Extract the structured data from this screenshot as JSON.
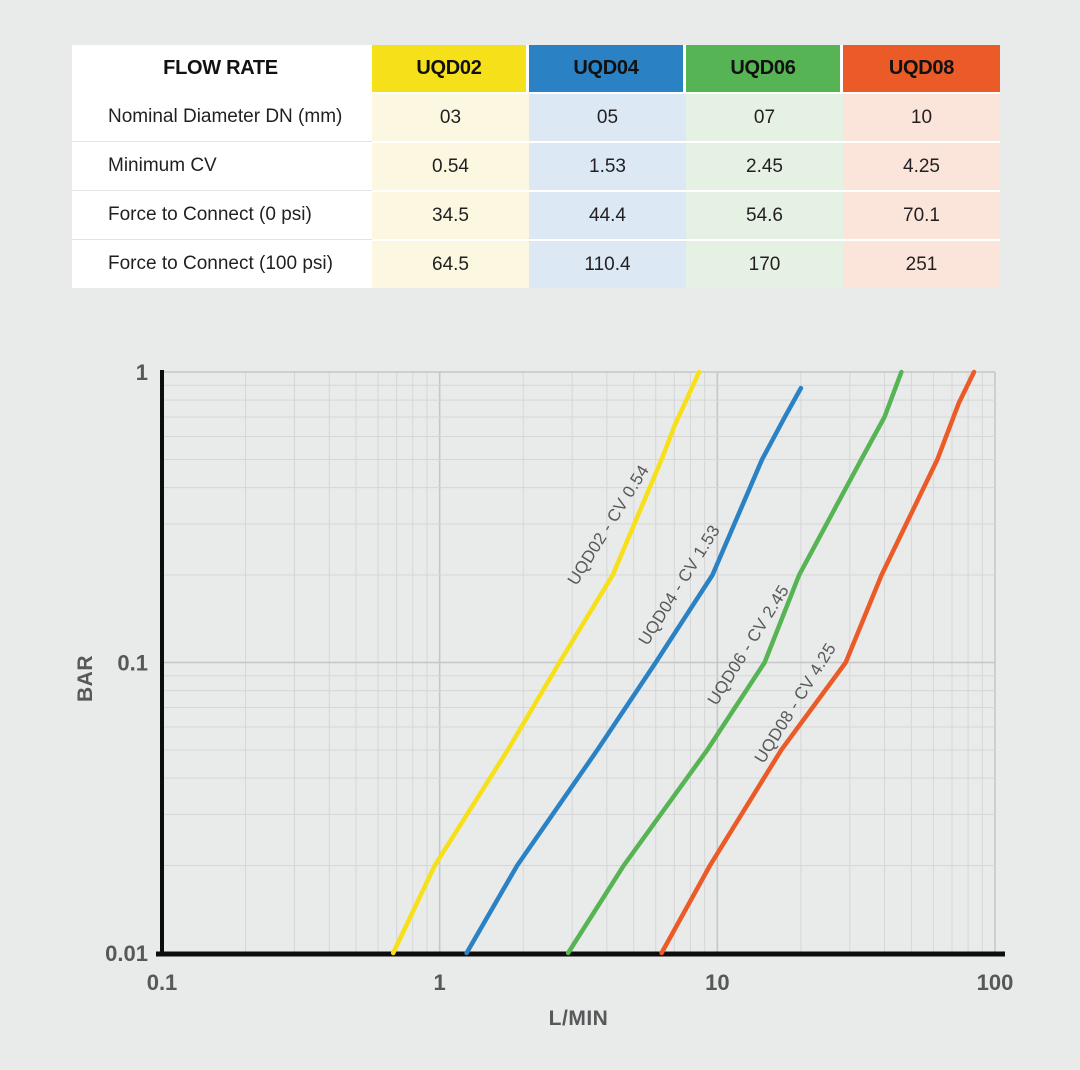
{
  "table": {
    "corner_label": "FLOW RATE",
    "columns": [
      {
        "label": "UQD02",
        "header_color": "#f6e01a",
        "tint_color": "#fcf7e0"
      },
      {
        "label": "UQD04",
        "header_color": "#2a82c5",
        "tint_color": "#dce9f5"
      },
      {
        "label": "UQD06",
        "header_color": "#57b454",
        "tint_color": "#e5f1e3"
      },
      {
        "label": "UQD08",
        "header_color": "#ea5b28",
        "tint_color": "#fbe5db"
      }
    ],
    "rows": [
      {
        "label": "Nominal Diameter DN (mm)",
        "values": [
          "03",
          "05",
          "07",
          "10"
        ]
      },
      {
        "label": "Minimum CV",
        "values": [
          "0.54",
          "1.53",
          "2.45",
          "4.25"
        ]
      },
      {
        "label": "Force to Connect (0 psi)",
        "values": [
          "34.5",
          "44.4",
          "54.6",
          "70.1"
        ]
      },
      {
        "label": "Force to Connect (100 psi)",
        "values": [
          "64.5",
          "110.4",
          "170",
          "251"
        ]
      }
    ]
  },
  "chart_data": {
    "type": "line",
    "xlabel": "L/MIN",
    "ylabel": "BAR",
    "x_scale": "log",
    "y_scale": "log",
    "xlim": [
      0.1,
      100
    ],
    "ylim": [
      0.01,
      1
    ],
    "x_ticks": [
      0.1,
      1,
      10,
      100
    ],
    "y_ticks": [
      1,
      0.1,
      0.01
    ],
    "grid": true,
    "legend_position": "inline-rotated-labels",
    "series": [
      {
        "name": "UQD02 - CV 0.54",
        "color": "#f6e01a",
        "points": [
          [
            0.68,
            0.01
          ],
          [
            0.96,
            0.02
          ],
          [
            1.76,
            0.05
          ],
          [
            2.7,
            0.1
          ],
          [
            4.2,
            0.2
          ],
          [
            6.3,
            0.5
          ],
          [
            7.0,
            0.65
          ],
          [
            8.6,
            1.0
          ]
        ]
      },
      {
        "name": "UQD04 - CV 1.53",
        "color": "#2a82c5",
        "points": [
          [
            1.25,
            0.01
          ],
          [
            1.9,
            0.02
          ],
          [
            3.7,
            0.05
          ],
          [
            6.0,
            0.1
          ],
          [
            9.6,
            0.2
          ],
          [
            14.5,
            0.5
          ],
          [
            17.5,
            0.7
          ],
          [
            20,
            0.88
          ]
        ]
      },
      {
        "name": "UQD06 - CV 2.45",
        "color": "#57b454",
        "points": [
          [
            2.9,
            0.01
          ],
          [
            4.6,
            0.02
          ],
          [
            9.2,
            0.05
          ],
          [
            14.8,
            0.1
          ],
          [
            19.7,
            0.2
          ],
          [
            33,
            0.5
          ],
          [
            40,
            0.7
          ],
          [
            46,
            1.0
          ]
        ]
      },
      {
        "name": "UQD08 - CV 4.25",
        "color": "#ea5b28",
        "points": [
          [
            6.3,
            0.01
          ],
          [
            9.4,
            0.02
          ],
          [
            17,
            0.05
          ],
          [
            29,
            0.1
          ],
          [
            39,
            0.2
          ],
          [
            62,
            0.5
          ],
          [
            74,
            0.78
          ],
          [
            84,
            1.0
          ]
        ]
      }
    ]
  }
}
